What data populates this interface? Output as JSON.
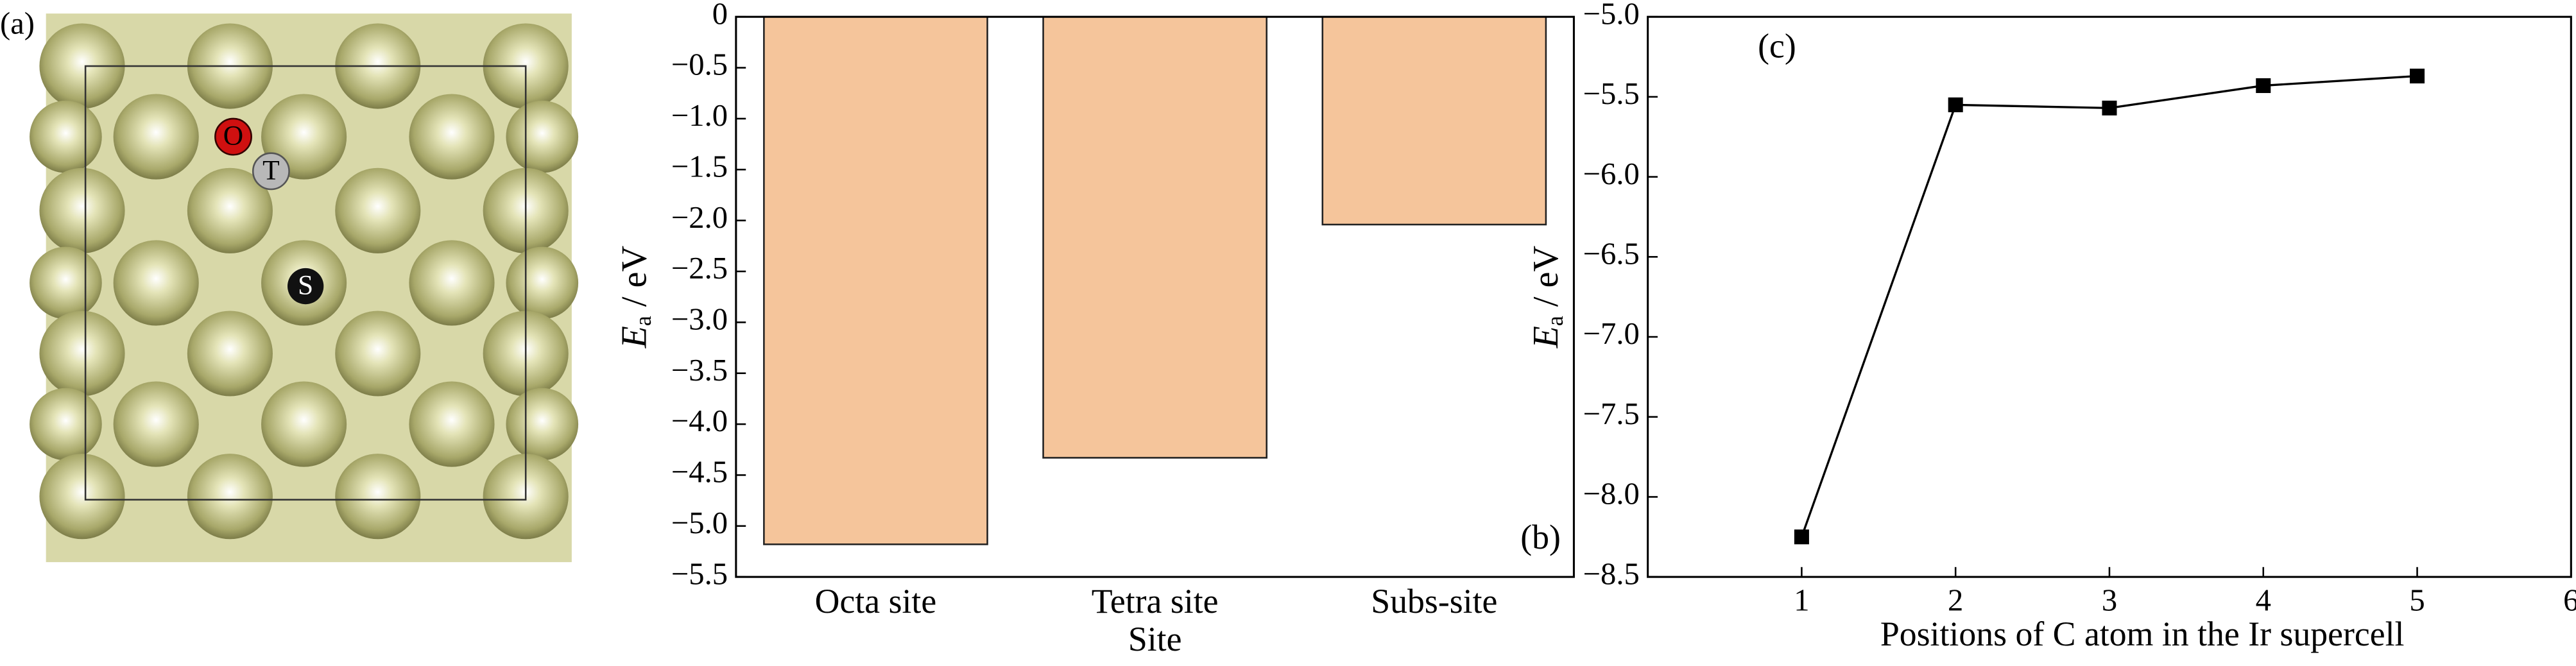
{
  "panel_a": {
    "label": "(a)",
    "sites": [
      "O",
      "T",
      "S"
    ]
  },
  "chart_data": [
    {
      "type": "bar",
      "panel_label": "(b)",
      "xlabel": "Site",
      "ylabel": {
        "symbol": "E",
        "sub": "a",
        "unit": " / eV"
      },
      "categories": [
        "Octa site",
        "Tetra site",
        "Subs-site"
      ],
      "values": [
        -5.18,
        -4.33,
        -2.04
      ],
      "color": "#f5c59b",
      "ylim": [
        -5.5,
        0
      ],
      "yticks": [
        0,
        {
          "value": -0.5,
          "label": "−0.5"
        },
        {
          "value": -1.0,
          "label": "−1.0"
        },
        {
          "value": -1.5,
          "label": "−1.5"
        },
        {
          "value": -2.0,
          "label": "−2.0"
        },
        {
          "value": -2.5,
          "label": "−2.5"
        },
        {
          "value": -3.0,
          "label": "−3.0"
        },
        {
          "value": -3.5,
          "label": "−3.5"
        },
        {
          "value": -4.0,
          "label": "−4.0"
        },
        {
          "value": -4.5,
          "label": "−4.5"
        },
        {
          "value": -5.0,
          "label": "−5.0"
        },
        {
          "value": -5.5,
          "label": "−5.5"
        }
      ]
    },
    {
      "type": "line",
      "panel_label": "(c)",
      "xlabel": "Positions of C atom in the Ir supercell",
      "ylabel": {
        "symbol": "E",
        "sub": "a",
        "unit": " / eV"
      },
      "x": [
        1,
        2,
        3,
        4,
        5
      ],
      "values": [
        -8.25,
        -5.55,
        -5.57,
        -5.43,
        -5.37
      ],
      "color": "#000000",
      "xlim": [
        0,
        6
      ],
      "xticks": [
        1,
        2,
        3,
        4,
        5,
        6
      ],
      "ylim": [
        -8.5,
        -5.0
      ],
      "yticks": [
        {
          "value": -5.0,
          "label": "−5.0"
        },
        {
          "value": -5.5,
          "label": "−5.5"
        },
        {
          "value": -6.0,
          "label": "−6.0"
        },
        {
          "value": -6.5,
          "label": "−6.5"
        },
        {
          "value": -7.0,
          "label": "−7.0"
        },
        {
          "value": -7.5,
          "label": "−7.5"
        },
        {
          "value": -8.0,
          "label": "−8.0"
        },
        {
          "value": -8.5,
          "label": "−8.5"
        }
      ]
    }
  ]
}
